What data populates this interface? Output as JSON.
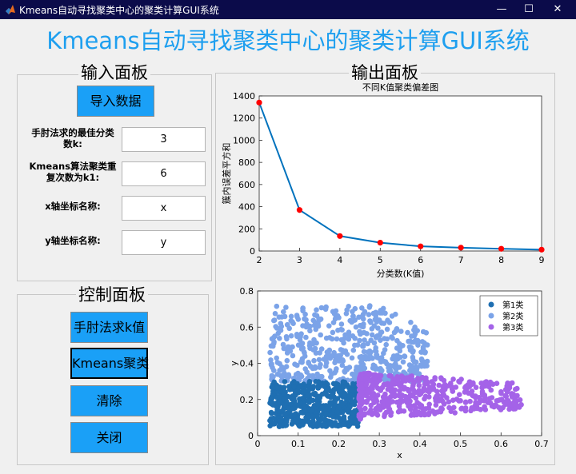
{
  "window": {
    "title": "Kmeans自动寻找聚类中心的聚类计算GUI系统",
    "controls": [
      "—",
      "☐",
      "✕"
    ]
  },
  "app_title": "Kmeans自动寻找聚类中心的聚类计算GUI系统",
  "input_panel": {
    "title": "输入面板",
    "import_button": "导入数据",
    "fields": [
      {
        "label_line1": "手肘法求的最佳分类",
        "label_line2": "数k:",
        "value": "3"
      },
      {
        "label_line1": "Kmeans算法聚类重",
        "label_line2": "复次数为k1:",
        "value": "6"
      },
      {
        "label_line1": "x轴坐标名称:",
        "label_line2": "",
        "value": "x"
      },
      {
        "label_line1": "y轴坐标名称:",
        "label_line2": "",
        "value": "y"
      }
    ]
  },
  "control_panel": {
    "title": "控制面板",
    "buttons": [
      "手肘法求k值",
      "Kmeans聚类",
      "清除",
      "关闭"
    ]
  },
  "output_panel": {
    "title": "输出面板"
  },
  "colors": {
    "accent": "#1aa0f7",
    "title_blue": "#1e9fef",
    "line": "#0072bd",
    "marker": "#ff0000",
    "cluster1": "#1f6fb2",
    "cluster2": "#7ba3e8",
    "cluster3": "#a463e8"
  },
  "chart_data": [
    {
      "type": "line",
      "title": "不同K值聚类偏差图",
      "xlabel": "分类数(K值)",
      "ylabel": "簇内误差平方和",
      "x": [
        2,
        3,
        4,
        5,
        6,
        7,
        8,
        9
      ],
      "y": [
        1340,
        370,
        135,
        75,
        42,
        30,
        20,
        12
      ],
      "xlim": [
        2,
        9
      ],
      "ylim": [
        0,
        1400
      ],
      "xticks": [
        2,
        3,
        4,
        5,
        6,
        7,
        8,
        9
      ],
      "yticks": [
        0,
        200,
        400,
        600,
        800,
        1000,
        1200,
        1400
      ],
      "grid": false
    },
    {
      "type": "scatter",
      "title": "",
      "xlabel": "x",
      "ylabel": "y",
      "xlim": [
        0,
        0.7
      ],
      "ylim": [
        0,
        0.8
      ],
      "xticks": [
        0,
        0.1,
        0.2,
        0.3,
        0.4,
        0.5,
        0.6,
        0.7
      ],
      "yticks": [
        0,
        0.2,
        0.4,
        0.6,
        0.8
      ],
      "legend_position": "top-right",
      "series": [
        {
          "name": "第1类",
          "x_range": [
            0.03,
            0.25
          ],
          "y_range": [
            0.05,
            0.3
          ],
          "count": 520
        },
        {
          "name": "第2类",
          "x_range": [
            0.03,
            0.42
          ],
          "y_range": [
            0.3,
            0.72
          ],
          "count": 520
        },
        {
          "name": "第3类",
          "x_range": [
            0.25,
            0.65
          ],
          "y_range": [
            0.1,
            0.36
          ],
          "count": 460
        }
      ]
    }
  ]
}
